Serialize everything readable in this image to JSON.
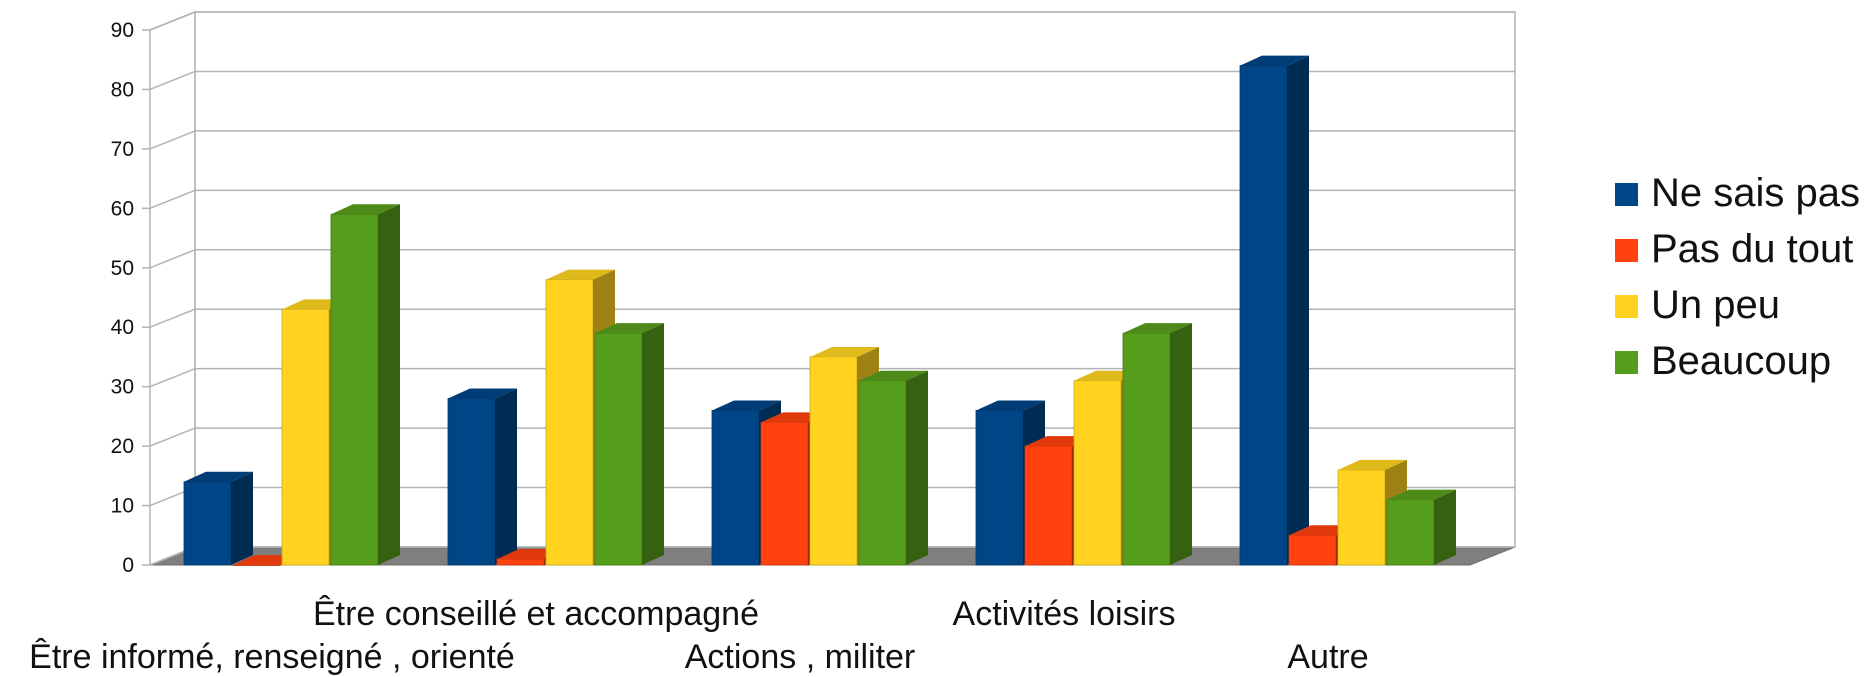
{
  "chart_data": {
    "type": "bar",
    "style": "3d-clustered",
    "categories": [
      "Être informé, renseigné , orienté",
      "Être conseillé et accompagné",
      "Actions , militer",
      "Activités loisirs",
      "Autre"
    ],
    "series": [
      {
        "name": "Ne sais pas",
        "color": "#004586",
        "values": [
          14,
          28,
          26,
          26,
          84
        ]
      },
      {
        "name": "Pas du tout",
        "color": "#ff420e",
        "values": [
          0,
          1,
          24,
          20,
          5
        ]
      },
      {
        "name": "Un peu",
        "color": "#ffd320",
        "values": [
          43,
          48,
          35,
          31,
          16
        ]
      },
      {
        "name": "Beaucoup",
        "color": "#579d1c",
        "values": [
          59,
          39,
          31,
          39,
          11
        ]
      }
    ],
    "ylim": [
      0,
      90
    ],
    "yticks": [
      0,
      10,
      20,
      30,
      40,
      50,
      60,
      70,
      80,
      90
    ],
    "grid": true,
    "legend_position": "right"
  }
}
